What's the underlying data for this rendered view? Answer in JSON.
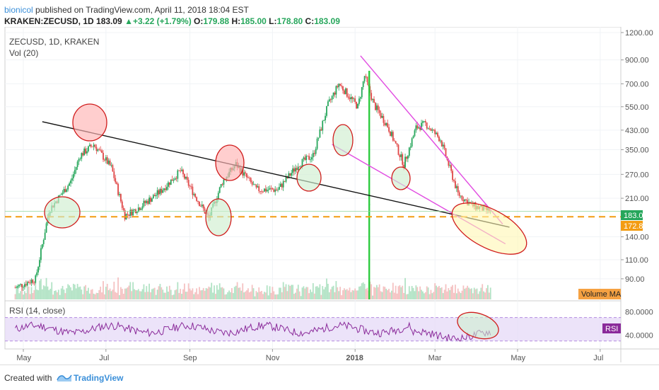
{
  "header": {
    "author": "bionicol",
    "published_text": "published on TradingView.com, April 11, 2018 18:04 EST",
    "symbol": "KRAKEN:ZECUSD, 1D",
    "last": "183.09",
    "change_arrow": "▲",
    "change": "+3.22 (+1.79%)",
    "o_label": "O:",
    "o": "179.88",
    "h_label": "H:",
    "h": "185.00",
    "l_label": "L:",
    "l": "178.80",
    "c_label": "C:",
    "c": "183.09"
  },
  "main_pane": {
    "title": "ZECUSD, 1D, KRAKEN",
    "vol_label": "Vol (20)",
    "volume_ma_label": "Volume MA",
    "price_badge": "183.09",
    "level_badge": "172.88"
  },
  "rsi_pane": {
    "label": "RSI (14, close)",
    "badge": "RSI"
  },
  "footer": {
    "created_with": "Created with",
    "brand": "TradingView"
  },
  "colors": {
    "up": "#26a65b",
    "down": "#e04646",
    "trend_black": "#111111",
    "wedge": "#e14be1",
    "level": "#f39c12",
    "rsi_line": "#8a2a9a",
    "rsi_band": "#e6d9f7",
    "circle_red": "#ffb3b3",
    "circle_green": "#cfeecf",
    "circle_yellow": "#fff7b3"
  },
  "chart_data": {
    "type": "candlestick",
    "price_scale": "log",
    "y_ticks": [
      1200,
      900,
      700,
      550,
      430,
      350,
      270,
      210,
      140,
      110,
      90
    ],
    "y_tick_labels": [
      "1200.00",
      "900.00",
      "700.00",
      "550.00",
      "430.00",
      "350.00",
      "270.00",
      "210.00",
      "140.00",
      "110.00",
      "90.00"
    ],
    "x_tick_labels": [
      "May",
      "Jul",
      "Sep",
      "Nov",
      "2018",
      "Mar",
      "May",
      "Jul"
    ],
    "key_points": [
      {
        "date": "2017-04-25",
        "close": 82
      },
      {
        "date": "2017-05-10",
        "close": 90
      },
      {
        "date": "2017-05-20",
        "close": 185
      },
      {
        "date": "2017-06-05",
        "close": 250
      },
      {
        "date": "2017-06-12",
        "close": 330
      },
      {
        "date": "2017-06-22",
        "close": 370
      },
      {
        "date": "2017-07-05",
        "close": 290
      },
      {
        "date": "2017-07-15",
        "close": 175
      },
      {
        "date": "2017-07-25",
        "close": 190
      },
      {
        "date": "2017-08-10",
        "close": 225
      },
      {
        "date": "2017-08-25",
        "close": 280
      },
      {
        "date": "2017-09-05",
        "close": 215
      },
      {
        "date": "2017-09-15",
        "close": 170
      },
      {
        "date": "2017-09-25",
        "close": 250
      },
      {
        "date": "2017-10-05",
        "close": 300
      },
      {
        "date": "2017-10-20",
        "close": 230
      },
      {
        "date": "2017-11-05",
        "close": 230
      },
      {
        "date": "2017-11-20",
        "close": 300
      },
      {
        "date": "2017-12-01",
        "close": 330
      },
      {
        "date": "2017-12-12",
        "close": 560
      },
      {
        "date": "2017-12-20",
        "close": 700
      },
      {
        "date": "2018-01-03",
        "close": 550
      },
      {
        "date": "2018-01-08",
        "close": 760
      },
      {
        "date": "2018-01-15",
        "close": 560
      },
      {
        "date": "2018-01-25",
        "close": 450
      },
      {
        "date": "2018-02-06",
        "close": 300
      },
      {
        "date": "2018-02-15",
        "close": 440
      },
      {
        "date": "2018-02-22",
        "close": 460
      },
      {
        "date": "2018-03-05",
        "close": 390
      },
      {
        "date": "2018-03-18",
        "close": 220
      },
      {
        "date": "2018-03-28",
        "close": 195
      },
      {
        "date": "2018-04-11",
        "close": 183.09
      }
    ],
    "horizontal_level": 172.88,
    "rsi_ticks": [
      80,
      40
    ],
    "rsi_tick_labels": [
      "80.0000",
      "40.0000"
    ],
    "rsi_band": [
      30,
      70
    ],
    "annotations": {
      "black_trendline": [
        {
          "date": "2017-05-15",
          "price": 470
        },
        {
          "date": "2018-04-25",
          "price": 155
        }
      ],
      "upper_wedge_line": [
        {
          "date": "2018-01-05",
          "price": 940
        },
        {
          "date": "2018-04-20",
          "price": 160
        }
      ],
      "lower_wedge_line": [
        {
          "date": "2017-12-15",
          "price": 370
        },
        {
          "date": "2018-04-22",
          "price": 130
        }
      ]
    }
  }
}
